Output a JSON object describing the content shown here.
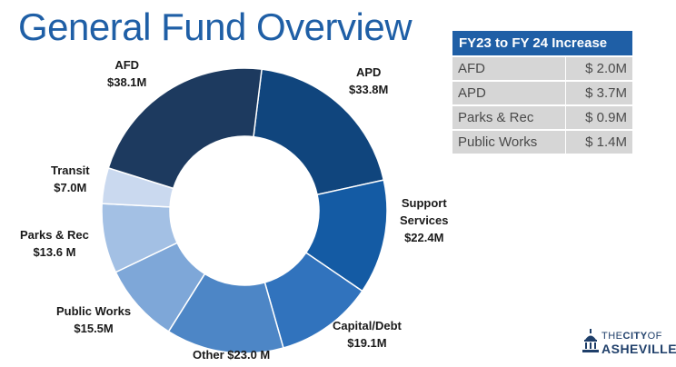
{
  "page": {
    "title": "General Fund Overview"
  },
  "chart_data": {
    "type": "pie",
    "title": "",
    "unit": "$M",
    "slices": [
      {
        "name": "APD",
        "value": 33.8,
        "label": "$33.8M",
        "color": "#10457d"
      },
      {
        "name": "Support Services",
        "value": 22.4,
        "label": "$22.4M",
        "color": "#145ba4"
      },
      {
        "name": "Capital/Debt",
        "value": 19.1,
        "label": "$19.1M",
        "color": "#3173bd"
      },
      {
        "name": "Other",
        "value": 23.0,
        "label": "$23.0 M",
        "color": "#4d86c6"
      },
      {
        "name": "Public Works",
        "value": 15.5,
        "label": "$15.5M",
        "color": "#7ea7d8"
      },
      {
        "name": "Parks & Rec",
        "value": 13.6,
        "label": "$13.6 M",
        "color": "#a3c0e4"
      },
      {
        "name": "Transit",
        "value": 7.0,
        "label": "$7.0M",
        "color": "#cad9ef"
      },
      {
        "name": "AFD",
        "value": 38.1,
        "label": "$38.1M",
        "color": "#1d3a5f"
      }
    ]
  },
  "labels": {
    "apd": {
      "name": "APD",
      "amount": "$33.8M"
    },
    "support": {
      "name1": "Support",
      "name2": "Services",
      "amount": "$22.4M"
    },
    "capital": {
      "name": "Capital/Debt",
      "amount": "$19.1M"
    },
    "other": {
      "text": "Other $23.0 M"
    },
    "public_works": {
      "name": "Public Works",
      "amount": "$15.5M"
    },
    "parks": {
      "name": "Parks & Rec",
      "amount": "$13.6 M"
    },
    "transit": {
      "name": "Transit",
      "amount": "$7.0M"
    },
    "afd": {
      "name": "AFD",
      "amount": "$38.1M"
    }
  },
  "increase_table": {
    "header": "FY23 to FY 24 Increase",
    "rows": [
      {
        "dept": "AFD",
        "amount": "$ 2.0M"
      },
      {
        "dept": "APD",
        "amount": "$ 3.7M"
      },
      {
        "dept": "Parks & Rec",
        "amount": "$ 0.9M"
      },
      {
        "dept": "Public Works",
        "amount": "$ 1.4M"
      }
    ]
  },
  "logo": {
    "line1a": "THE",
    "line1b": "CITY",
    "line1c": "OF",
    "line2": "ASHEVILLE"
  }
}
